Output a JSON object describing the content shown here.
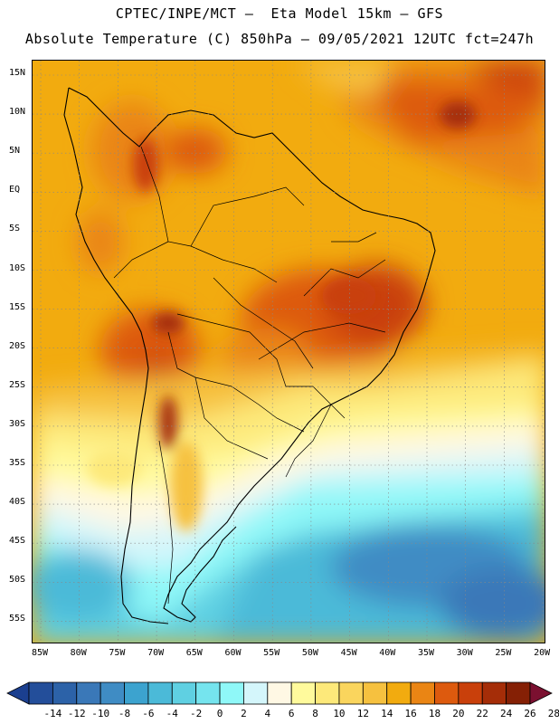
{
  "header": {
    "title_line1": "CPTEC/INPE/MCT –  Eta Model 15km – GFS",
    "title_line2": "Absolute Temperature (C) 850hPa – 09/05/2021 12UTC fct=247h"
  },
  "map": {
    "lat_labels": [
      "15N",
      "10N",
      "5N",
      "EQ",
      "5S",
      "10S",
      "15S",
      "20S",
      "25S",
      "30S",
      "35S",
      "40S",
      "45S",
      "50S",
      "55S"
    ],
    "lon_labels": [
      "85W",
      "80W",
      "75W",
      "70W",
      "65W",
      "60W",
      "55W",
      "50W",
      "45W",
      "40W",
      "35W",
      "30W",
      "25W",
      "20W"
    ],
    "grid": "dotted"
  },
  "colorbar": {
    "ticks": [
      "-14",
      "-12",
      "-10",
      "-8",
      "-6",
      "-4",
      "-2",
      "0",
      "2",
      "4",
      "6",
      "8",
      "10",
      "12",
      "14",
      "16",
      "18",
      "20",
      "22",
      "24",
      "26",
      "28"
    ],
    "colors": [
      "#1b3f8f",
      "#234e9a",
      "#2c62a8",
      "#3a78b8",
      "#3f8cc4",
      "#3ca3cf",
      "#4bbad8",
      "#5fd0e2",
      "#75e4ee",
      "#8ff8f8",
      "#d4f6fb",
      "#fff8e4",
      "#fffa9c",
      "#fde97a",
      "#fad55d",
      "#f6c13f",
      "#f2ab0f",
      "#ea8514",
      "#dd5a0e",
      "#c9400b",
      "#a52d08",
      "#852005",
      "#7b1030"
    ]
  }
}
